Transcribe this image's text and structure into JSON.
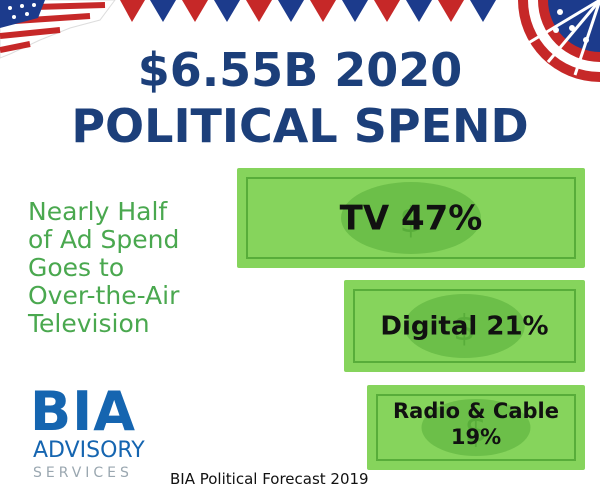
{
  "header": {
    "line1": "$6.55B 2020",
    "line2": "POLITICAL SPEND"
  },
  "subtitle": {
    "lines": [
      "Nearly Half",
      "of Ad Spend",
      "Goes to",
      "Over-the-Air",
      "Television"
    ]
  },
  "chart_data": {
    "type": "bar",
    "categories": [
      "TV",
      "Digital",
      "Radio & Cable"
    ],
    "values": [
      47,
      21,
      19
    ],
    "unit": "%",
    "labels": [
      "TV 47%",
      "Digital 21%",
      "Radio & Cable 19%"
    ]
  },
  "footer": {
    "logo": "BIA",
    "logo_line2": "ADVISORY",
    "logo_line3": "SERVICES",
    "source": "BIA Political Forecast 2019"
  },
  "colors": {
    "title": "#1c3f7a",
    "subtitle": "#4aa84f",
    "bill": "#86d45c",
    "bill_dark": "#58ad3a",
    "logo": "#1565b0"
  }
}
